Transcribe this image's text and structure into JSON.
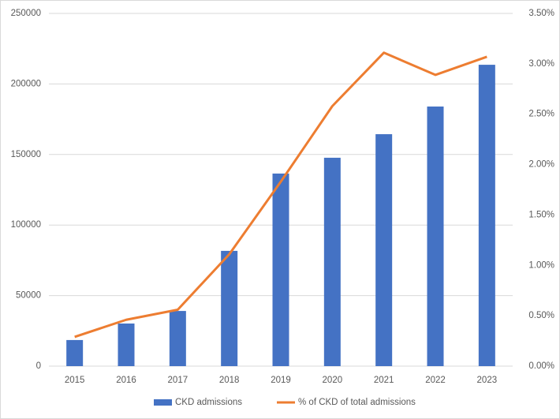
{
  "chart_data": {
    "type": "combo",
    "categories": [
      "2015",
      "2016",
      "2017",
      "2018",
      "2019",
      "2020",
      "2021",
      "2022",
      "2023"
    ],
    "series": [
      {
        "name": "CKD admissions",
        "type": "bar",
        "color": "#4472c4",
        "axis": "y",
        "values": [
          18500,
          30200,
          39100,
          81700,
          136500,
          147700,
          164400,
          184000,
          213600
        ]
      },
      {
        "name": "% of CKD of total admissions",
        "type": "line",
        "color": "#ed7d31",
        "axis": "y2",
        "values": [
          0.29,
          0.46,
          0.56,
          1.11,
          1.83,
          2.58,
          3.11,
          2.89,
          3.07
        ]
      }
    ],
    "ylim": [
      0,
      250000
    ],
    "yticks": [
      0,
      50000,
      100000,
      150000,
      200000,
      250000
    ],
    "y2lim": [
      0,
      3.5
    ],
    "y2ticks": [
      {
        "value": 0,
        "label": "0.00%"
      },
      {
        "value": 0.5,
        "label": "0.50%"
      },
      {
        "value": 1,
        "label": "1.00%"
      },
      {
        "value": 1.5,
        "label": "1.50%"
      },
      {
        "value": 2,
        "label": "2.00%"
      },
      {
        "value": 2.5,
        "label": "2.50%"
      },
      {
        "value": 3,
        "label": "3.00%"
      },
      {
        "value": 3.5,
        "label": "3.50%"
      }
    ],
    "grid": true,
    "legend": "bottom"
  }
}
